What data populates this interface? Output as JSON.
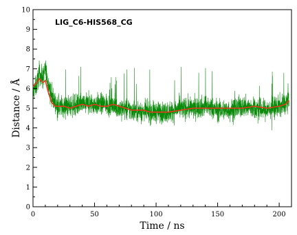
{
  "chart_data": {
    "type": "line",
    "title": "",
    "annotation": "LIG_C6-HIS568_CG",
    "xlabel": "Time / ns",
    "ylabel": "Distance / Å",
    "xlim": [
      0,
      210
    ],
    "ylim": [
      0,
      10
    ],
    "x_ticks": [
      0,
      50,
      100,
      150,
      200
    ],
    "y_ticks": [
      0,
      1,
      2,
      3,
      4,
      5,
      6,
      7,
      8,
      9,
      10
    ],
    "grid": false,
    "legend": "none",
    "series": [
      {
        "role": "raw-distance",
        "color": "#0a8a0a",
        "noise_amplitude": 0.7,
        "x": [
          0,
          3,
          5,
          8,
          10,
          12,
          15,
          20,
          30,
          40,
          50,
          60,
          70,
          80,
          90,
          100,
          110,
          120,
          130,
          140,
          150,
          160,
          170,
          180,
          190,
          200,
          205,
          208
        ],
        "values": [
          5.8,
          6.2,
          6.8,
          6.5,
          7.0,
          6.4,
          5.6,
          5.1,
          5.1,
          5.2,
          5.2,
          5.2,
          5.0,
          4.9,
          4.8,
          4.8,
          4.8,
          5.0,
          5.0,
          5.1,
          4.9,
          4.9,
          5.1,
          5.0,
          4.9,
          5.1,
          5.2,
          5.6
        ]
      },
      {
        "role": "running-average",
        "color": "#e8381c",
        "x": [
          0,
          3,
          5,
          8,
          10,
          12,
          15,
          18,
          20,
          25,
          30,
          35,
          40,
          45,
          50,
          55,
          60,
          65,
          70,
          75,
          80,
          85,
          90,
          95,
          100,
          110,
          120,
          130,
          140,
          150,
          160,
          170,
          180,
          190,
          200,
          205,
          208
        ],
        "values": [
          6.1,
          6.3,
          6.5,
          6.3,
          6.4,
          5.9,
          5.3,
          5.1,
          5.1,
          5.1,
          5.0,
          5.1,
          5.2,
          5.1,
          5.2,
          5.1,
          5.1,
          5.2,
          5.1,
          5.0,
          4.9,
          4.9,
          4.9,
          4.8,
          4.8,
          4.8,
          4.9,
          5.0,
          5.0,
          5.0,
          5.0,
          5.0,
          5.1,
          5.0,
          5.1,
          5.2,
          5.4
        ]
      }
    ]
  }
}
